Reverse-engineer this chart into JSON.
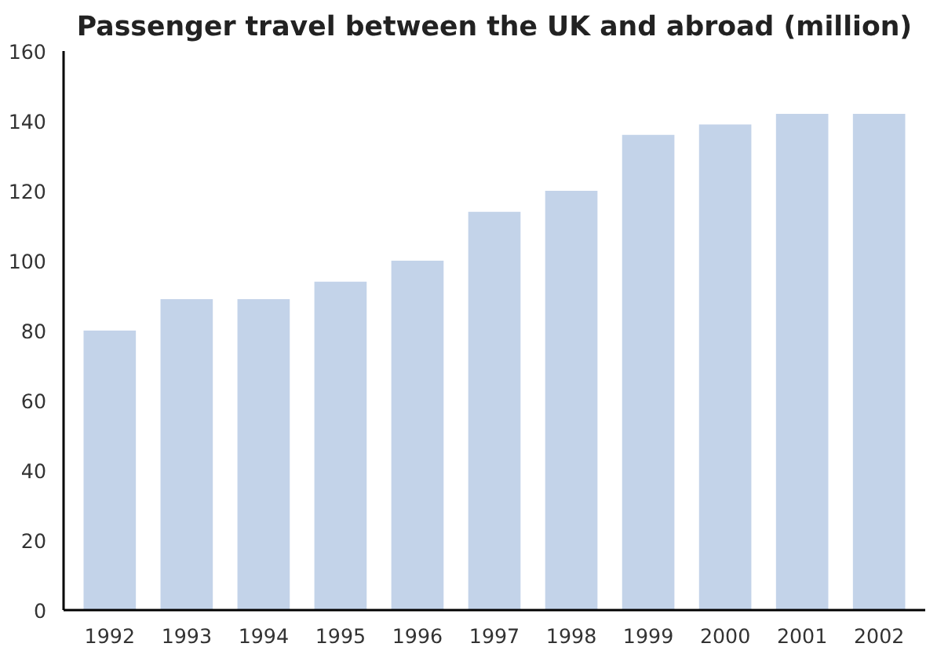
{
  "chart_data": {
    "type": "bar",
    "title": "Passenger travel between the UK and abroad (million)",
    "categories": [
      "1992",
      "1993",
      "1994",
      "1995",
      "1996",
      "1997",
      "1998",
      "1999",
      "2000",
      "2001",
      "2002"
    ],
    "values": [
      80,
      89,
      89,
      94,
      100,
      114,
      120,
      136,
      139,
      142,
      142
    ],
    "color": "#c3d3e9",
    "ylim": [
      0,
      160
    ],
    "yticks": [
      0,
      20,
      40,
      60,
      80,
      100,
      120,
      140,
      160
    ],
    "grid": false
  }
}
